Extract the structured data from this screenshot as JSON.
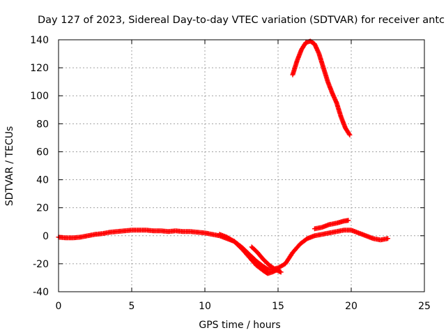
{
  "chart_data": {
    "type": "scatter",
    "title": "Day 127 of 2023, Sidereal Day-to-day VTEC variation (SDTVAR) for receiver antc",
    "xlabel": "GPS time / hours",
    "ylabel": "SDTVAR / TECUs",
    "xlim": [
      0,
      25
    ],
    "ylim": [
      -40,
      140
    ],
    "xticks": [
      0,
      5,
      10,
      15,
      20,
      25
    ],
    "xtick_labels": [
      "0",
      "5",
      "10",
      "15",
      "20",
      "25"
    ],
    "yticks": [
      -40,
      -20,
      0,
      20,
      40,
      60,
      80,
      100,
      120,
      140
    ],
    "ytick_labels": [
      "-40",
      "-20",
      "0",
      "20",
      "40",
      "60",
      "80",
      "100",
      "120",
      "140"
    ],
    "grid": true,
    "color": "#ff0000",
    "marker": "plus",
    "series": [
      {
        "name": "main-trace",
        "x": [
          0,
          0.5,
          1,
          1.5,
          2,
          2.5,
          3,
          3.5,
          4,
          4.5,
          5,
          5.5,
          6,
          6.5,
          7,
          7.5,
          8,
          8.5,
          9,
          9.5,
          10,
          10.5,
          11,
          11.5,
          12,
          12.5,
          13,
          13.5,
          14,
          14.3,
          14.6,
          15,
          15.5,
          16,
          16.5,
          17,
          17.5,
          18,
          18.5,
          19,
          19.5,
          20,
          20.5,
          21,
          21.5,
          22,
          22.5
        ],
        "y": [
          -1,
          -1.5,
          -1.5,
          -1,
          0,
          1,
          1.5,
          2.5,
          3,
          3.5,
          4,
          4,
          4,
          3.5,
          3.5,
          3,
          3.5,
          3,
          3,
          2.5,
          2,
          1,
          0,
          -2,
          -4,
          -8,
          -13,
          -18,
          -22,
          -24,
          -24,
          -23,
          -20,
          -12,
          -6,
          -2,
          0,
          1,
          2,
          3,
          4,
          4,
          2,
          0,
          -2,
          -3,
          -2
        ]
      },
      {
        "name": "lower-band",
        "x": [
          11,
          11.5,
          12,
          12.5,
          13,
          13.5,
          14,
          14.3,
          14.6,
          15
        ],
        "y": [
          1,
          -1,
          -4,
          -9,
          -15,
          -21,
          -25,
          -27,
          -26,
          -24
        ]
      },
      {
        "name": "secondary-dip",
        "x": [
          13.2,
          13.6,
          14,
          14.4,
          14.8,
          15.2
        ],
        "y": [
          -8,
          -12,
          -17,
          -21,
          -24,
          -26
        ]
      },
      {
        "name": "rising-branch",
        "x": [
          17.5,
          18,
          18.5,
          19,
          19.5,
          19.8
        ],
        "y": [
          5,
          6,
          8,
          9,
          10.5,
          11
        ]
      },
      {
        "name": "upper-arc",
        "x": [
          16,
          16.3,
          16.6,
          16.9,
          17.2,
          17.5,
          17.8,
          18.1,
          18.4,
          18.7,
          19,
          19.3,
          19.6,
          19.9
        ],
        "y": [
          115,
          125,
          133,
          138,
          139,
          137,
          130,
          120,
          110,
          102,
          95,
          85,
          77,
          72
        ]
      }
    ]
  },
  "colors": {
    "series": "#ff0000",
    "grid": "#a0a0a0",
    "frame": "#000000"
  }
}
